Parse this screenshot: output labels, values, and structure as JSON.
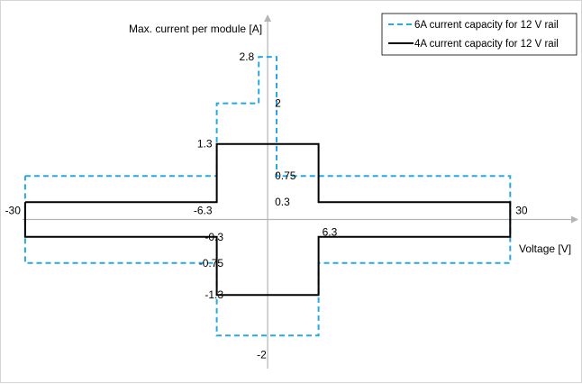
{
  "chart_data": {
    "type": "line",
    "title": "",
    "ylabel": "Max. current per module [A]",
    "xlabel": "Voltage [V]",
    "axis_color": "#b4b4b4",
    "xlim": [
      -33,
      39
    ],
    "ylim": [
      -2.6,
      3.5
    ],
    "series": [
      {
        "name": "6A current capacity for 12 V rail",
        "color": "#29a8df",
        "dash": true,
        "x": [
          -30,
          -6.3,
          -6.3,
          -1.1,
          -1.1,
          1.1,
          1.1,
          6.3,
          6.3,
          30,
          30,
          6.3,
          6.3,
          -6.3,
          -6.3,
          -30,
          -30
        ],
        "y": [
          0.75,
          0.75,
          2,
          2,
          2.8,
          2.8,
          0.75,
          0.75,
          0.75,
          0.75,
          -0.75,
          -0.75,
          -2,
          -2,
          -0.75,
          -0.75,
          0.75
        ]
      },
      {
        "name": "4A current capacity for 12 V rail",
        "color": "#000000",
        "dash": false,
        "x": [
          -30,
          -6.3,
          -6.3,
          6.3,
          6.3,
          30,
          30,
          6.3,
          6.3,
          -6.3,
          -6.3,
          -30,
          -30
        ],
        "y": [
          0.3,
          0.3,
          1.3,
          1.3,
          0.3,
          0.3,
          -0.3,
          -0.3,
          -1.3,
          -1.3,
          -0.3,
          -0.3,
          0.3
        ]
      }
    ],
    "y_annotations": [
      {
        "value": 2.8,
        "text": "2.8",
        "side": "left"
      },
      {
        "value": 2,
        "text": "2",
        "side": "right"
      },
      {
        "value": 1.3,
        "text": "1.3",
        "side": "left"
      },
      {
        "value": 0.75,
        "text": "0.75",
        "side": "right"
      },
      {
        "value": 0.3,
        "text": "0.3",
        "side": "right"
      },
      {
        "value": -0.3,
        "text": "-0.3",
        "side": "left"
      },
      {
        "value": -0.75,
        "text": "-0.75",
        "side": "left"
      },
      {
        "value": -1.3,
        "text": "-1.3",
        "side": "left"
      },
      {
        "value": -2,
        "text": "-2",
        "side": "center"
      }
    ],
    "x_annotations": [
      {
        "value": -30,
        "text": "-30",
        "pos": "left-above"
      },
      {
        "value": -6.3,
        "text": "-6.3",
        "pos": "left-above"
      },
      {
        "value": 6.3,
        "text": "6.3",
        "pos": "right-below"
      },
      {
        "value": 30,
        "text": "30",
        "pos": "right-above"
      }
    ],
    "legend_position": "top-right",
    "grid": false
  }
}
